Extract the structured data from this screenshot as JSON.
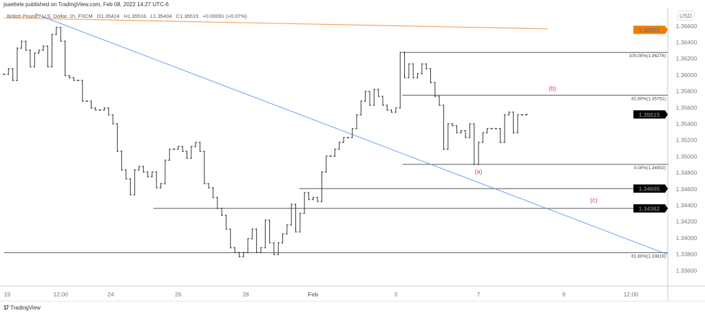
{
  "header": {
    "publisher": "jsaettele published on TradingView.com, Feb 08, 2022 14:27 UTC-6",
    "symbol": "British Pound / U.S. Dollar, 1h, FXCM",
    "open": "O1.35424",
    "high": "H1.35516",
    "low": "L1.35404",
    "close": "C1.35515",
    "change": "+0.00091 (+0.07%)"
  },
  "footer": {
    "brand": "TradingView",
    "logo_text": "17"
  },
  "colors": {
    "bars": "#333333",
    "trendline": "#5b9cf6",
    "moving_average": "#f7a35c",
    "ma_label": "#f57c00",
    "wave_labels": "#f23645",
    "levels": "#555555"
  },
  "chart_data": {
    "type": "ohlc-bar",
    "currency_label": "USD",
    "ylim": [
      1.3346,
      1.367
    ],
    "xlim": [
      0,
      152.5
    ],
    "y_ticks": [
      "1.33600",
      "1.33800",
      "1.34000",
      "1.34200",
      "1.34400",
      "1.34600",
      "1.34800",
      "1.35000",
      "1.35200",
      "1.35400",
      "1.35600",
      "1.35800",
      "1.36000",
      "1.36200",
      "1.36400",
      "1.36600"
    ],
    "x_ticks": [
      {
        "label": "19",
        "index": 0.7
      },
      {
        "label": "12:00",
        "index": 13
      },
      {
        "label": "24",
        "index": 24.5
      },
      {
        "label": "26",
        "index": 40
      },
      {
        "label": "28",
        "index": 55.5
      },
      {
        "label": "Feb",
        "index": 71,
        "bold": true
      },
      {
        "label": "3",
        "index": 90
      },
      {
        "label": "7",
        "index": 109
      },
      {
        "label": "9",
        "index": 128.6
      },
      {
        "label": "12:00",
        "index": 144
      }
    ],
    "closes": [
      1.36008,
      1.36075,
      1.35932,
      1.36328,
      1.36413,
      1.36303,
      1.361,
      1.36269,
      1.36303,
      1.36354,
      1.361,
      1.36497,
      1.36582,
      1.36413,
      1.35991,
      1.35966,
      1.35932,
      1.35932,
      1.35678,
      1.35678,
      1.35594,
      1.35569,
      1.35569,
      1.35594,
      1.3551,
      1.354,
      1.35062,
      1.34834,
      1.34724,
      1.3453,
      1.34834,
      1.34877,
      1.34809,
      1.3475,
      1.34809,
      1.34615,
      1.34666,
      1.34953,
      1.35088,
      1.35088,
      1.35121,
      1.35062,
      1.34978,
      1.35121,
      1.35172,
      1.35062,
      1.34666,
      1.34615,
      1.34496,
      1.34362,
      1.34277,
      1.34108,
      1.3388,
      1.33821,
      1.3377,
      1.33821,
      1.3399,
      1.34108,
      1.33821,
      1.3388,
      1.34218,
      1.3394,
      1.33796,
      1.3394,
      1.34049,
      1.34159,
      1.34412,
      1.34074,
      1.34302,
      1.34555,
      1.34471,
      1.34496,
      1.34446,
      1.34809,
      1.35003,
      1.35003,
      1.35088,
      1.35172,
      1.35231,
      1.35231,
      1.35341,
      1.3551,
      1.35678,
      1.35797,
      1.35628,
      1.35822,
      1.35737,
      1.35628,
      1.35569,
      1.35543,
      1.35594,
      1.36276,
      1.35966,
      1.36134,
      1.35965,
      1.36016,
      1.36134,
      1.36075,
      1.35906,
      1.35737,
      1.35628,
      1.35088,
      1.354,
      1.35375,
      1.3529,
      1.35316,
      1.35231,
      1.354,
      1.34902,
      1.35172,
      1.3529,
      1.35341,
      1.35341,
      1.35341,
      1.35172,
      1.3551,
      1.35543,
      1.3529,
      1.3551,
      1.3551,
      1.35515
    ],
    "price_labels": [
      {
        "value": "1.36553",
        "kind": "moving-average"
      },
      {
        "value": "1.35515",
        "kind": "last-price"
      },
      {
        "value": "1.34605",
        "kind": "level"
      },
      {
        "value": "1.34362",
        "kind": "level"
      }
    ],
    "horizontal_levels": [
      {
        "price": 1.34362,
        "from_index": 34.3
      },
      {
        "price": 1.34605,
        "from_index": 67.8
      },
      {
        "price": 1.33819,
        "from_index": 0,
        "label": "61.80%(1.33819)"
      }
    ],
    "fibonacci": {
      "from_index": 91.5,
      "levels": [
        {
          "price": 1.36276,
          "label": "100.00%(1.36276)"
        },
        {
          "price": 1.35751,
          "label": "61.80%(1.35751)"
        },
        {
          "price": 1.34902,
          "label": "0.00%(1.34902)"
        }
      ]
    },
    "trendline": {
      "start": [
        7.1,
        1.3675
      ],
      "end": [
        152.5,
        1.33796
      ]
    },
    "moving_average": {
      "start": [
        0,
        1.367
      ],
      "end": [
        125,
        1.36565
      ]
    },
    "wave_labels": [
      {
        "text": "(a)",
        "index": 109,
        "price": 1.3479
      },
      {
        "text": "(b)",
        "index": 126,
        "price": 1.3581
      },
      {
        "text": "(c)",
        "index": 135.5,
        "price": 1.3444
      }
    ]
  }
}
